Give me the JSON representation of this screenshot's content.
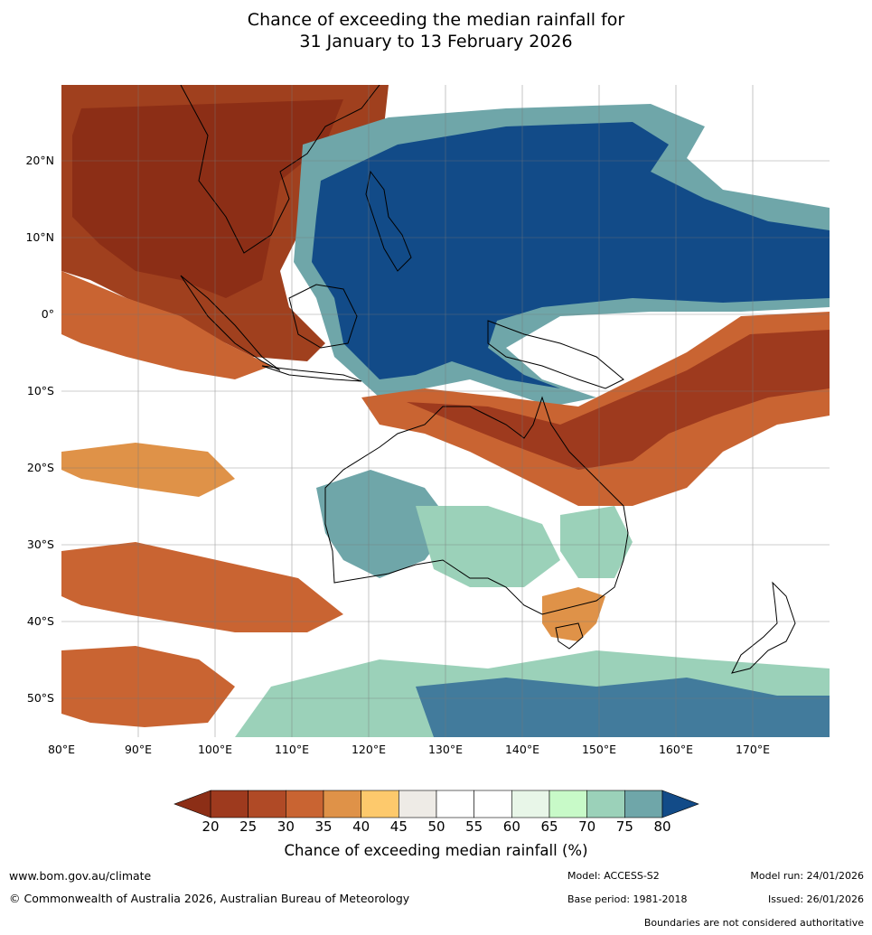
{
  "title": {
    "line1": "Chance of exceeding the median rainfall for",
    "line2": "31 January to 13 February 2026"
  },
  "lat_labels": [
    "20°N",
    "10°N",
    "0°",
    "10°S",
    "20°S",
    "30°S",
    "40°S",
    "50°S"
  ],
  "lon_labels": [
    "80°E",
    "90°E",
    "100°E",
    "110°E",
    "120°E",
    "130°E",
    "140°E",
    "150°E",
    "160°E",
    "170°E"
  ],
  "colorbar": {
    "ticks": [
      "20",
      "25",
      "30",
      "35",
      "40",
      "45",
      "50",
      "55",
      "60",
      "65",
      "70",
      "75",
      "80"
    ],
    "colors": [
      "#9e3a1e",
      "#b04a26",
      "#c96432",
      "#df9248",
      "#fdc96c",
      "#eeebe6",
      "#ffffff",
      "#ffffff",
      "#e8f6e8",
      "#c8fac8",
      "#9bd1b9",
      "#6fa6a9",
      "#427b9c"
    ],
    "under_color": "#8c2e16",
    "over_color": "#124b88",
    "label": "Chance of exceeding median rainfall (%)"
  },
  "footer": {
    "website": "www.bom.gov.au/climate",
    "copyright": "© Commonwealth of Australia 2026, Australian Bureau of Meteorology",
    "model": "Model: ACCESS-S2",
    "model_run": "Model run: 24/01/2026",
    "base_period": "Base period: 1981-2018",
    "issued": "Issued: 26/01/2026",
    "disclaimer": "Boundaries are not considered authoritative"
  }
}
